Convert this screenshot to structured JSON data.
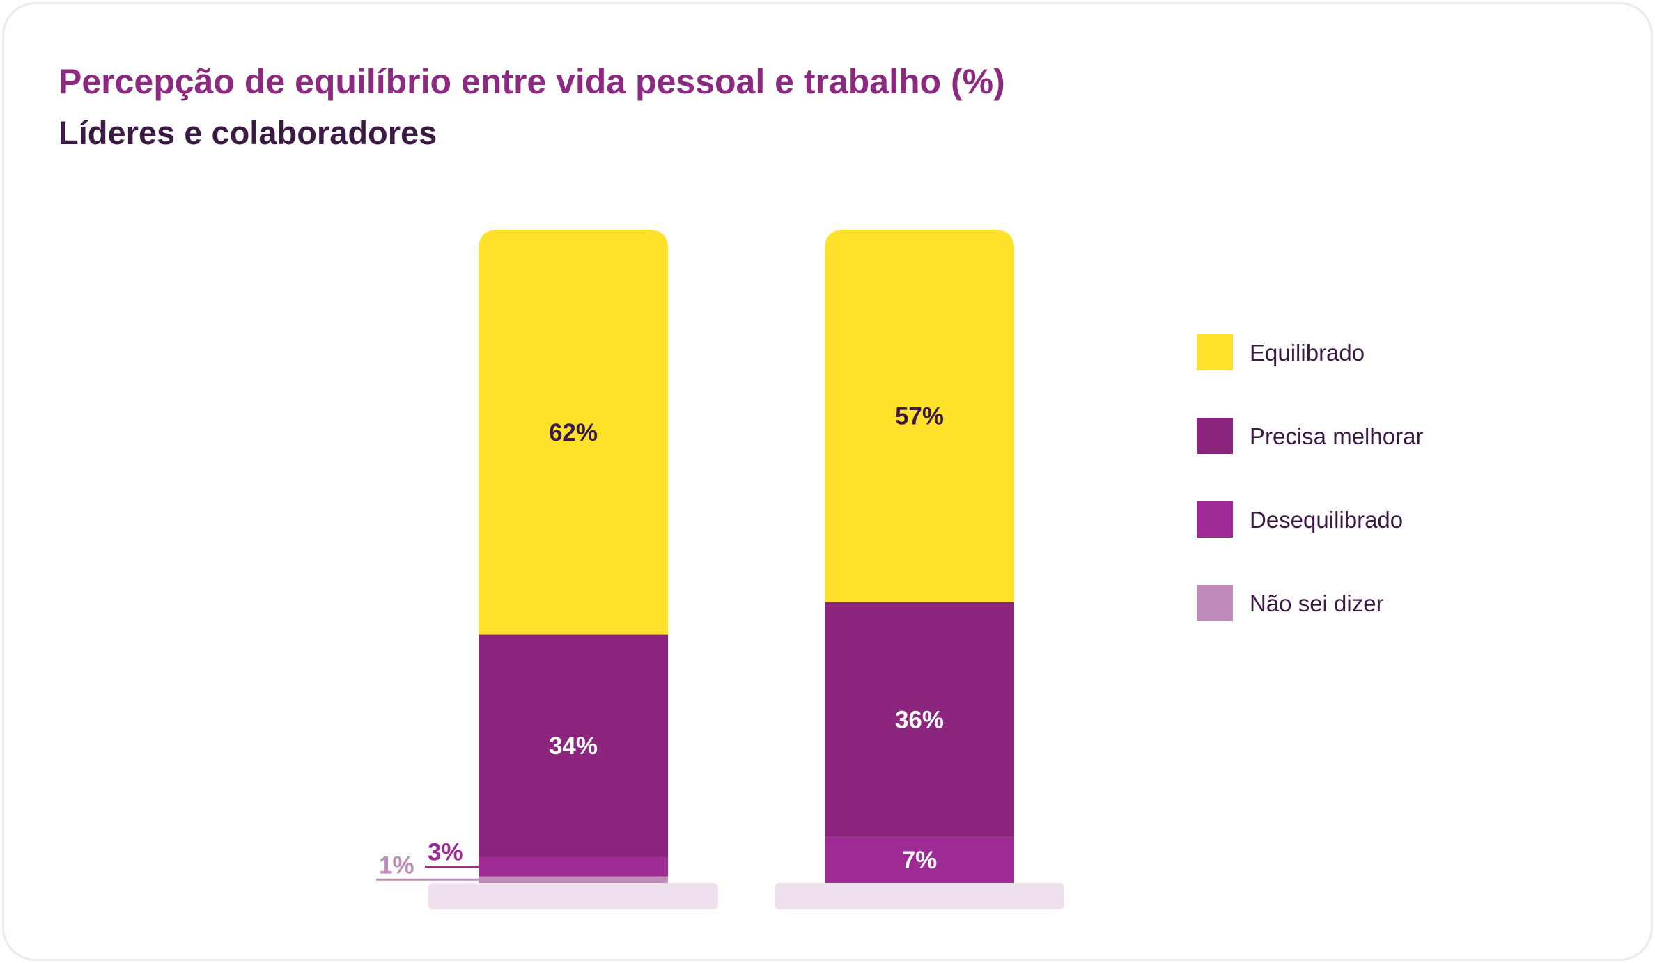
{
  "title": "Percepção de equilíbrio entre vida pessoal e trabalho (%)",
  "subtitle": "Líderes e colaboradores",
  "colors": {
    "equilibrado": "#fde12a",
    "precisa_melhorar": "#8b257e",
    "desequilibrado": "#9e2b93",
    "nao_sei_dizer": "#bf8bb8",
    "base": "#ede0ec",
    "label_dark": "#3b1a44",
    "label_light": "#ffffff"
  },
  "legend": [
    {
      "label": "Equilibrado",
      "color": "#fde12a"
    },
    {
      "label": "Precisa melhorar",
      "color": "#8b257e"
    },
    {
      "label": "Desequilibrado",
      "color": "#9e2b93"
    },
    {
      "label": "Não sei dizer",
      "color": "#bf8bb8"
    }
  ],
  "chart_data": {
    "type": "bar",
    "stacked": true,
    "categories": [
      "",
      ""
    ],
    "series": [
      {
        "name": "Não sei dizer",
        "values": [
          1,
          0
        ],
        "labels": [
          "1%",
          ""
        ]
      },
      {
        "name": "Desequilibrado",
        "values": [
          3,
          7
        ],
        "labels": [
          "3%",
          "7%"
        ]
      },
      {
        "name": "Precisa melhorar",
        "values": [
          34,
          36
        ],
        "labels": [
          "34%",
          "36%"
        ]
      },
      {
        "name": "Equilibrado",
        "values": [
          62,
          57
        ],
        "labels": [
          "62%",
          "57%"
        ]
      }
    ],
    "legend_position": "right",
    "grid": false
  }
}
